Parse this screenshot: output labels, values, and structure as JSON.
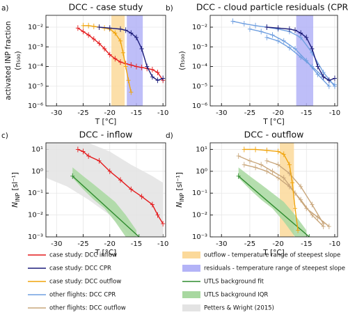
{
  "chart_data": [
    {
      "type": "line",
      "letter": "a)",
      "title": "DCC - case study",
      "ylabel": "activated INP fraction",
      "ylabel2": "(n₅₀₀)",
      "xlabel": "T [°C]",
      "yscale": "log",
      "grid": true,
      "xlim": [
        -32,
        -9.5
      ],
      "xticks": [
        -30,
        -25,
        -20,
        -15,
        -10
      ],
      "ylim": [
        1e-06,
        0.04
      ],
      "yticks": [
        {
          "value": 1e-06,
          "label": "10⁻⁶"
        },
        {
          "value": 1e-05,
          "label": "10⁻⁵"
        },
        {
          "value": 0.0001,
          "label": "10⁻⁴"
        },
        {
          "value": 0.001,
          "label": "10⁻³"
        },
        {
          "value": 0.01,
          "label": "10⁻²"
        }
      ],
      "series": [
        {
          "kind": "span",
          "color": "#fbd99a",
          "xspan": [
            -19.7,
            -17.2
          ]
        },
        {
          "kind": "span",
          "color": "#b3b3f7",
          "xspan": [
            -16.8,
            -13.8
          ]
        },
        {
          "kind": "line",
          "color": "#e41a1c",
          "x": [
            -26,
            -25,
            -24,
            -23,
            -22,
            -21,
            -20,
            -19,
            -18,
            -17,
            -16,
            -15,
            -14,
            -13,
            -12,
            -11,
            -10
          ],
          "values": [
            0.009,
            0.006,
            0.004,
            0.0025,
            0.0015,
            0.0008,
            0.0004,
            0.00025,
            0.00017,
            0.00014,
            0.00012,
            0.0001,
            9e-05,
            8e-05,
            7e-05,
            5e-05,
            2e-05
          ]
        },
        {
          "kind": "line",
          "color": "#f0a30a",
          "x": [
            -25,
            -24,
            -23,
            -22,
            -21,
            -20,
            -19,
            -18,
            -17.5,
            -17,
            -16.5,
            -16
          ],
          "values": [
            0.012,
            0.012,
            0.011,
            0.01,
            0.009,
            0.008,
            0.005,
            0.002,
            0.0005,
            0.0001,
            2e-05,
            5e-06
          ]
        },
        {
          "kind": "line",
          "color": "#1c1c7a",
          "x": [
            -22,
            -20,
            -18,
            -17,
            -16,
            -15,
            -14,
            -13,
            -12,
            -11,
            -10
          ],
          "values": [
            0.01,
            0.009,
            0.008,
            0.007,
            0.005,
            0.003,
            0.0008,
            0.0001,
            3e-05,
            2e-05,
            2.5e-05
          ]
        }
      ]
    },
    {
      "type": "line",
      "letter": "b)",
      "title": "DCC - cloud particle residuals (CPR)",
      "ylabel2": "(n₅₀₀)",
      "xlabel": "T [°C]",
      "yscale": "log",
      "grid": true,
      "xlim": [
        -32,
        -9.5
      ],
      "xticks": [
        -30,
        -25,
        -20,
        -15,
        -10
      ],
      "ylim": [
        1e-06,
        0.04
      ],
      "yticks": [
        {
          "value": 1e-06,
          "label": "10⁻⁶"
        },
        {
          "value": 1e-05,
          "label": "10⁻⁵"
        },
        {
          "value": 0.0001,
          "label": "10⁻⁴"
        },
        {
          "value": 0.001,
          "label": "10⁻³"
        },
        {
          "value": 0.01,
          "label": "10⁻²"
        }
      ],
      "series": [
        {
          "kind": "span",
          "color": "#b3b3f7",
          "xspan": [
            -16.8,
            -13.8
          ]
        },
        {
          "kind": "line",
          "color": "#6f9fe0",
          "x": [
            -28,
            -26,
            -24,
            -22,
            -20,
            -18,
            -16,
            -14,
            -12,
            -10
          ],
          "values": [
            0.02,
            0.015,
            0.012,
            0.01,
            0.008,
            0.006,
            0.003,
            0.0005,
            5e-05,
            1e-05
          ]
        },
        {
          "kind": "line",
          "color": "#6f9fe0",
          "x": [
            -25,
            -23,
            -21,
            -19,
            -17,
            -15,
            -13,
            -11
          ],
          "values": [
            0.008,
            0.006,
            0.004,
            0.002,
            0.0008,
            0.0002,
            4e-05,
            1e-05
          ]
        },
        {
          "kind": "line",
          "color": "#6f9fe0",
          "x": [
            -22,
            -20,
            -18,
            -16,
            -14,
            -12,
            -10
          ],
          "values": [
            0.003,
            0.002,
            0.0009,
            0.0003,
            0.0001,
            3e-05,
            1.2e-05
          ]
        },
        {
          "kind": "line",
          "color": "#1c1c7a",
          "x": [
            -22,
            -20,
            -18,
            -17,
            -16,
            -15,
            -14,
            -13,
            -12,
            -11,
            -10
          ],
          "values": [
            0.01,
            0.009,
            0.008,
            0.007,
            0.005,
            0.003,
            0.0008,
            0.0001,
            3e-05,
            2e-05,
            2.5e-05
          ]
        }
      ]
    },
    {
      "type": "line",
      "letter": "c)",
      "title": "DCC - inflow",
      "ylabel": "N",
      "ylabel_sub": "INP",
      "ylabel_unit": " [sl⁻¹]",
      "xlabel": "T [°C]",
      "yscale": "log",
      "grid": true,
      "xlim": [
        -32,
        -9.5
      ],
      "xticks": [
        -30,
        -25,
        -20,
        -15,
        -10
      ],
      "ylim": [
        0.001,
        20
      ],
      "yticks": [
        {
          "value": 0.001,
          "label": "10⁻³"
        },
        {
          "value": 0.01,
          "label": "10⁻²"
        },
        {
          "value": 0.1,
          "label": "10⁻¹"
        },
        {
          "value": 1,
          "label": "10⁰"
        },
        {
          "value": 10,
          "label": "10¹"
        }
      ],
      "series": [
        {
          "kind": "area",
          "color": "#e3e3e3",
          "x": [
            -32,
            -28,
            -24,
            -20,
            -16,
            -12,
            -10
          ],
          "upper": [
            20,
            20,
            20,
            8,
            2,
            0.6,
            0.3
          ],
          "lower": [
            0.5,
            0.2,
            0.05,
            0.01,
            0.001,
            0.001,
            0.001
          ]
        },
        {
          "kind": "area",
          "color": "#a8d8a0",
          "x": [
            -27,
            -25,
            -23,
            -21,
            -19,
            -17,
            -15
          ],
          "upper": [
            1.5,
            0.6,
            0.25,
            0.1,
            0.04,
            0.01,
            0.002
          ],
          "lower": [
            0.5,
            0.15,
            0.05,
            0.02,
            0.005,
            0.001,
            0.001
          ]
        },
        {
          "kind": "line",
          "color": "#2e8b2e",
          "x": [
            -27,
            -14.5
          ],
          "values": [
            0.6,
            0.001
          ]
        },
        {
          "kind": "line",
          "color": "#e41a1c",
          "x": [
            -26,
            -25,
            -24,
            -22,
            -20,
            -18,
            -16,
            -14,
            -12,
            -11,
            -10
          ],
          "values": [
            10,
            8,
            5,
            3,
            1,
            0.4,
            0.15,
            0.07,
            0.03,
            0.01,
            0.004
          ]
        }
      ]
    },
    {
      "type": "line",
      "letter": "d)",
      "title": "DCC - outflow",
      "ylabel": "N",
      "ylabel_sub": "INP",
      "ylabel_unit": " [sl⁻¹]",
      "xlabel": "T [°C]",
      "yscale": "log",
      "grid": true,
      "xlim": [
        -32,
        -9.5
      ],
      "xticks": [
        -30,
        -25,
        -20,
        -15,
        -10
      ],
      "ylim": [
        0.001,
        20
      ],
      "yticks": [
        {
          "value": 0.001,
          "label": "10⁻³"
        },
        {
          "value": 0.01,
          "label": "10⁻²"
        },
        {
          "value": 0.1,
          "label": "10⁻¹"
        },
        {
          "value": 1,
          "label": "10⁰"
        },
        {
          "value": 10,
          "label": "10¹"
        }
      ],
      "series": [
        {
          "kind": "span",
          "color": "#fbd99a",
          "xspan": [
            -19.7,
            -17.2
          ]
        },
        {
          "kind": "area",
          "color": "#a8d8a0",
          "x": [
            -27,
            -25,
            -23,
            -21,
            -19,
            -17,
            -15
          ],
          "upper": [
            1.5,
            0.6,
            0.25,
            0.1,
            0.04,
            0.01,
            0.002
          ],
          "lower": [
            0.5,
            0.15,
            0.05,
            0.02,
            0.005,
            0.001,
            0.001
          ]
        },
        {
          "kind": "line",
          "color": "#2e8b2e",
          "x": [
            -27,
            -14.5
          ],
          "values": [
            0.6,
            0.001
          ]
        },
        {
          "kind": "line",
          "color": "#c9a77c",
          "x": [
            -27,
            -25,
            -23,
            -21,
            -19,
            -17,
            -15,
            -13,
            -11
          ],
          "values": [
            5,
            3,
            2,
            1,
            0.5,
            0.1,
            0.02,
            0.008,
            0.003
          ]
        },
        {
          "kind": "line",
          "color": "#c9a77c",
          "x": [
            -26,
            -24,
            -22,
            -20,
            -18,
            -16,
            -14,
            -12
          ],
          "values": [
            2,
            1.5,
            1,
            0.5,
            0.2,
            0.05,
            0.01,
            0.003
          ]
        },
        {
          "kind": "line",
          "color": "#c9a77c",
          "x": [
            -22,
            -20,
            -18,
            -16,
            -14,
            -12
          ],
          "values": [
            3,
            2,
            0.8,
            0.2,
            0.03,
            0.004
          ]
        },
        {
          "kind": "line",
          "color": "#f0a30a",
          "x": [
            -26,
            -24,
            -22,
            -20,
            -19,
            -18,
            -17.5,
            -17,
            -16.5
          ],
          "values": [
            10,
            10,
            9,
            8,
            6,
            2,
            0.3,
            0.02,
            0.002
          ]
        }
      ]
    }
  ],
  "legend": [
    {
      "name": "case study: DCC inflow",
      "color": "#e41a1c",
      "kind": "line"
    },
    {
      "name": "case study: DCC CPR",
      "color": "#1c1c7a",
      "kind": "line"
    },
    {
      "name": "case study: DCC outflow",
      "color": "#f0a30a",
      "kind": "line"
    },
    {
      "name": "other flights: DCC CPR",
      "color": "#6f9fe0",
      "kind": "line"
    },
    {
      "name": "other flights: DCC outflow",
      "color": "#c9a77c",
      "kind": "line"
    },
    {
      "name": "outflow - temperature range of steepest slope",
      "color": "#fbd99a",
      "kind": "patch"
    },
    {
      "name": "residuals - temperature range of steepest slope",
      "color": "#b3b3f7",
      "kind": "patch"
    },
    {
      "name": "UTLS background fit",
      "color": "#2e8b2e",
      "kind": "line"
    },
    {
      "name": "UTLS background IQR",
      "color": "#a8d8a0",
      "kind": "patch"
    },
    {
      "name": "Petters & Wright (2015)",
      "color": "#e3e3e3",
      "kind": "patch"
    }
  ]
}
